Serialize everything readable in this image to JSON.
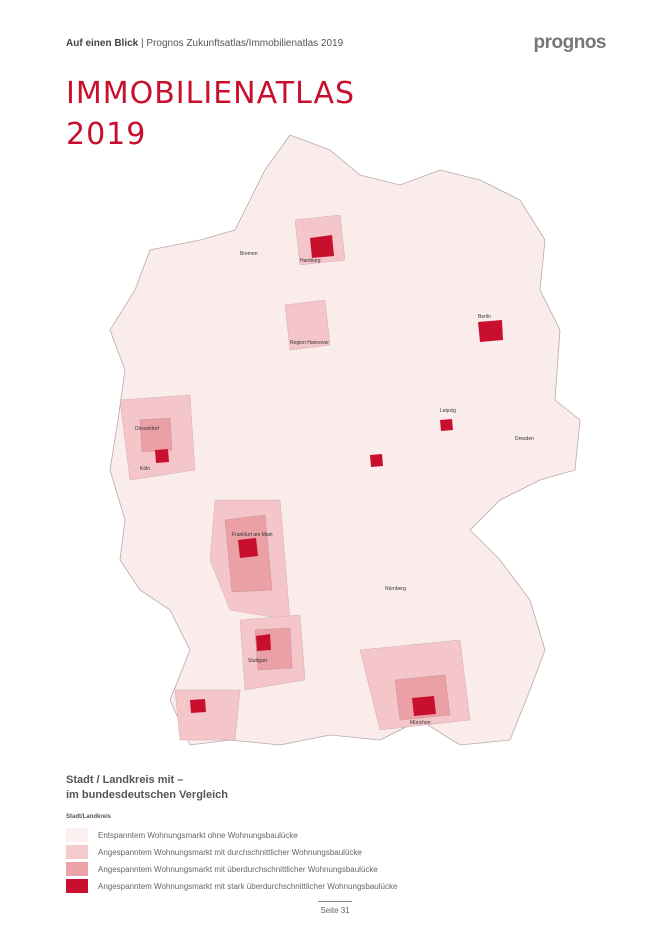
{
  "header": {
    "section": "Auf einen Blick",
    "publication": "| Prognos Zukunftsatlas/Immobilienatlas 2019",
    "logo": "prognos"
  },
  "title": {
    "line1": "IMMOBILIENATLAS",
    "line2": "2019"
  },
  "map_labels": [
    "Hamburg",
    "Berlin",
    "München",
    "Region Hannover",
    "Köln",
    "Frankfurt am Main",
    "Stuttgart",
    "Leipzig",
    "Dresden",
    "Nürnberg",
    "Bremen",
    "Düsseldorf"
  ],
  "legend": {
    "heading1": "Stadt / Landkreis mit –",
    "heading2": "im bundesdeutschen Vergleich",
    "subheading": "Stadt/Landkreis",
    "items": [
      {
        "label": "Entspanntem Wohnungsmarkt ohne Wohnungsbaulücke",
        "color": "#fcefef"
      },
      {
        "label": "Angespanntem Wohnungsmarkt mit durchschnittlicher Wohnungsbaulücke",
        "color": "#f6cbce"
      },
      {
        "label": "Angespanntem Wohnungsmarkt mit überdurchschnittlicher Wohnungsbaulücke",
        "color": "#eea3a8"
      },
      {
        "label": "Angespanntem Wohnungsmarkt mit stark überdurchschnittlicher Wohnungsbaulücke",
        "color": "#c8102e"
      }
    ]
  },
  "footer": {
    "page": "Seite 31"
  }
}
